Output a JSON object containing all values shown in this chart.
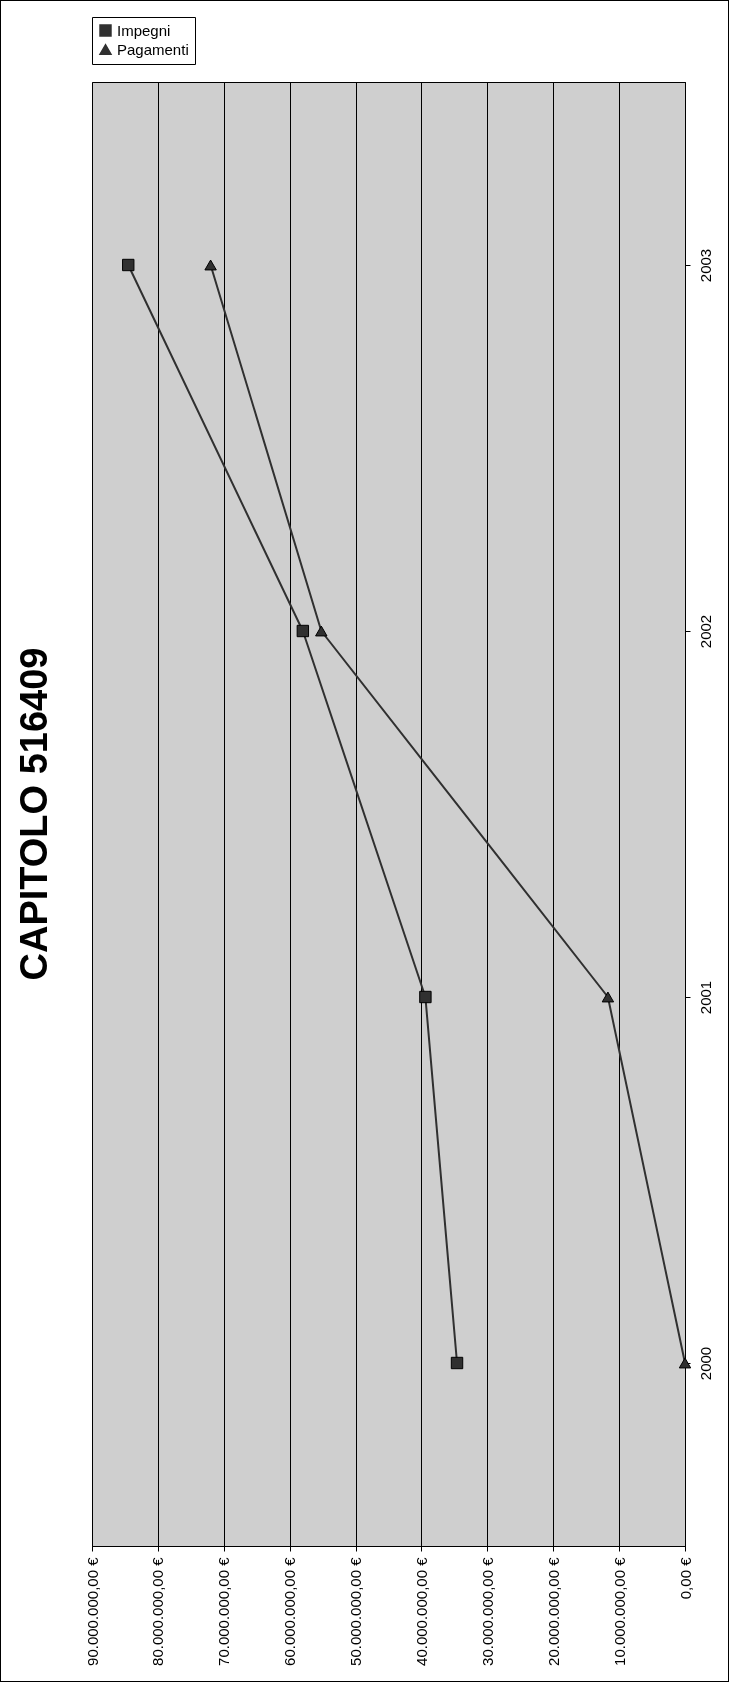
{
  "chart_data": {
    "type": "line",
    "title": "CAPITOLO 516409",
    "orientation": "horizontal",
    "categories": [
      "2003",
      "2002",
      "2001",
      "2000"
    ],
    "series": [
      {
        "name": "Impegni",
        "color": "#303030",
        "marker": "square",
        "values": [
          84500000,
          58000000,
          39400000,
          34600000
        ]
      },
      {
        "name": "Pagamenti",
        "color": "#303030",
        "marker": "triangle",
        "values": [
          72000000,
          55200000,
          11700000,
          0
        ]
      }
    ],
    "xlim": [
      90000000,
      0
    ],
    "xticks": [
      {
        "value": 0,
        "label": "0,00 €"
      },
      {
        "value": 10000000,
        "label": "10.000.000,00 €"
      },
      {
        "value": 20000000,
        "label": "20.000.000,00 €"
      },
      {
        "value": 30000000,
        "label": "30.000.000,00 €"
      },
      {
        "value": 40000000,
        "label": "40.000.000,00 €"
      },
      {
        "value": 50000000,
        "label": "50.000.000,00 €"
      },
      {
        "value": 60000000,
        "label": "60.000.000,00 €"
      },
      {
        "value": 70000000,
        "label": "70.000.000,00 €"
      },
      {
        "value": 80000000,
        "label": "80.000.000,00 €"
      },
      {
        "value": 90000000,
        "label": "90.000.000,00 €"
      }
    ],
    "grid": "x",
    "legend": "top"
  }
}
